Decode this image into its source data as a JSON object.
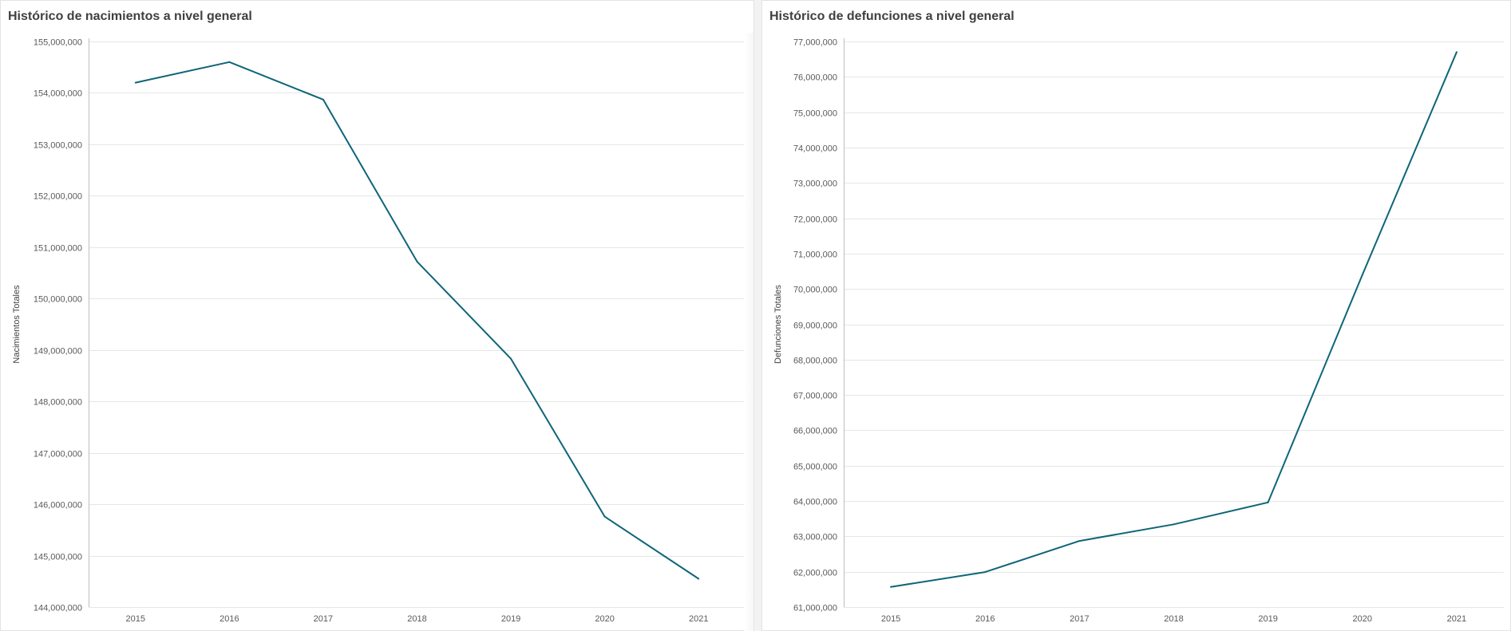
{
  "panels": [
    {
      "id": "births",
      "title": "Histórico de nacimientos a nivel general"
    },
    {
      "id": "deaths",
      "title": "Histórico de defunciones a nivel general"
    }
  ],
  "colors": {
    "line": "#0e6578"
  },
  "chart_data": [
    {
      "type": "line",
      "title": "Histórico de nacimientos a nivel general",
      "xlabel": "",
      "ylabel": "Nacimientos Totales",
      "x": [
        "2015",
        "2016",
        "2017",
        "2018",
        "2019",
        "2020",
        "2021"
      ],
      "series": [
        {
          "values": [
            154200000,
            154600000,
            153870000,
            150720000,
            148830000,
            145760000,
            144550000
          ]
        }
      ],
      "ylim": [
        144000000,
        155000000
      ],
      "yticks": [
        144000000,
        145000000,
        146000000,
        147000000,
        148000000,
        149000000,
        150000000,
        151000000,
        152000000,
        153000000,
        154000000,
        155000000
      ],
      "ytick_labels": [
        "144,000,000",
        "145,000,000",
        "146,000,000",
        "147,000,000",
        "148,000,000",
        "149,000,000",
        "150,000,000",
        "151,000,000",
        "152,000,000",
        "153,000,000",
        "154,000,000",
        "155,000,000"
      ],
      "grid": true,
      "legend": "none"
    },
    {
      "type": "line",
      "title": "Histórico de defunciones a nivel general",
      "xlabel": "",
      "ylabel": "Defunciones Totales",
      "x": [
        "2015",
        "2016",
        "2017",
        "2018",
        "2019",
        "2020",
        "2021"
      ],
      "series": [
        {
          "values": [
            61570000,
            61990000,
            62870000,
            63340000,
            63960000,
            70400000,
            76700000
          ]
        }
      ],
      "ylim": [
        61000000,
        77000000
      ],
      "yticks": [
        61000000,
        62000000,
        63000000,
        64000000,
        65000000,
        66000000,
        67000000,
        68000000,
        69000000,
        70000000,
        71000000,
        72000000,
        73000000,
        74000000,
        75000000,
        76000000,
        77000000
      ],
      "ytick_labels": [
        "61,000,000",
        "62,000,000",
        "63,000,000",
        "64,000,000",
        "65,000,000",
        "66,000,000",
        "67,000,000",
        "68,000,000",
        "69,000,000",
        "70,000,000",
        "71,000,000",
        "72,000,000",
        "73,000,000",
        "74,000,000",
        "75,000,000",
        "76,000,000",
        "77,000,000"
      ],
      "grid": true,
      "legend": "none"
    }
  ]
}
